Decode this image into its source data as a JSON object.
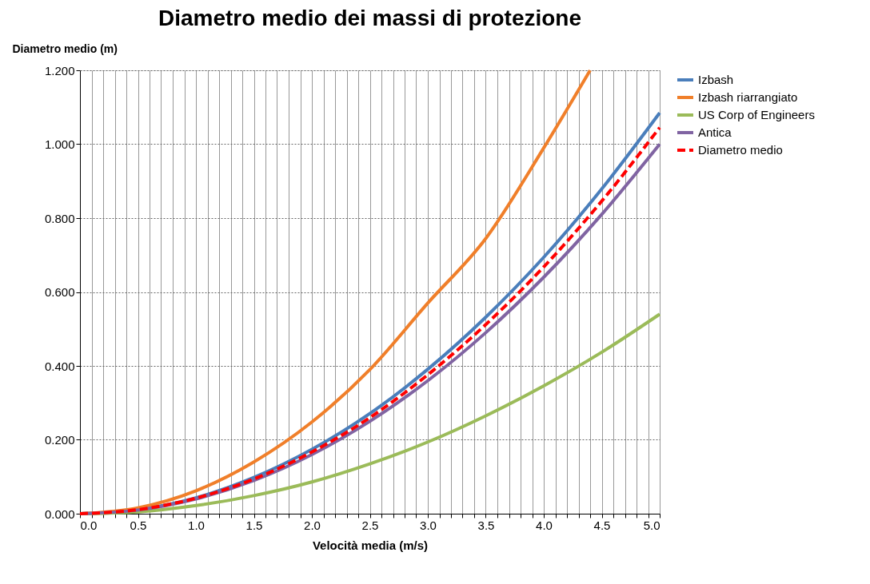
{
  "chart_data": {
    "type": "line",
    "title": "Diametro medio dei massi di protezione",
    "xlabel": "Velocità media (m/s)",
    "ylabel": "Diametro medio (m)",
    "x": [
      0,
      0.5,
      1,
      1.5,
      2,
      2.5,
      3,
      3.5,
      4,
      4.5,
      5
    ],
    "series": [
      {
        "name": "Izbash",
        "color": "#4a7ebb",
        "values": [
          0,
          0.011,
          0.043,
          0.098,
          0.174,
          0.271,
          0.391,
          0.532,
          0.694,
          0.879,
          1.085
        ]
      },
      {
        "name": "Izbash riarrangiato",
        "color": "#f07f2a",
        "x": [
          0,
          0.5,
          1,
          1.5,
          2,
          2.5,
          3,
          3.5,
          4,
          4.4
        ],
        "values": [
          0,
          0.016,
          0.062,
          0.14,
          0.248,
          0.39,
          0.57,
          0.745,
          0.99,
          1.2
        ]
      },
      {
        "name": "US Corp of Engineers",
        "color": "#9bbb59",
        "values": [
          0,
          0.005,
          0.022,
          0.049,
          0.086,
          0.135,
          0.194,
          0.265,
          0.346,
          0.437,
          0.54
        ]
      },
      {
        "name": "Antica",
        "color": "#8064a2",
        "values": [
          0,
          0.01,
          0.04,
          0.09,
          0.16,
          0.25,
          0.36,
          0.49,
          0.64,
          0.81,
          1.0
        ]
      },
      {
        "name": "Diametro medio",
        "color": "#ff0000",
        "line_style": "dashed",
        "values": [
          0,
          0.011,
          0.042,
          0.094,
          0.167,
          0.26,
          0.376,
          0.512,
          0.668,
          0.846,
          1.045
        ]
      }
    ],
    "xlim": [
      0,
      5
    ],
    "ylim": [
      0,
      1.2
    ],
    "xticks": [
      {
        "value": 0,
        "label": "0.0"
      },
      {
        "value": 0.1,
        "label": null
      },
      {
        "value": 0.2,
        "label": null
      },
      {
        "value": 0.3,
        "label": null
      },
      {
        "value": 0.4,
        "label": null
      },
      {
        "value": 0.5,
        "label": "0.5"
      },
      {
        "value": 0.6,
        "label": null
      },
      {
        "value": 0.7,
        "label": null
      },
      {
        "value": 0.8,
        "label": null
      },
      {
        "value": 0.9,
        "label": null
      },
      {
        "value": 1,
        "label": "1.0"
      },
      {
        "value": 1.1,
        "label": null
      },
      {
        "value": 1.2,
        "label": null
      },
      {
        "value": 1.3,
        "label": null
      },
      {
        "value": 1.4,
        "label": null
      },
      {
        "value": 1.5,
        "label": "1.5"
      },
      {
        "value": 1.6,
        "label": null
      },
      {
        "value": 1.7,
        "label": null
      },
      {
        "value": 1.8,
        "label": null
      },
      {
        "value": 1.9,
        "label": null
      },
      {
        "value": 2,
        "label": "2.0"
      },
      {
        "value": 2.1,
        "label": null
      },
      {
        "value": 2.2,
        "label": null
      },
      {
        "value": 2.3,
        "label": null
      },
      {
        "value": 2.4,
        "label": null
      },
      {
        "value": 2.5,
        "label": "2.5"
      },
      {
        "value": 2.6,
        "label": null
      },
      {
        "value": 2.7,
        "label": null
      },
      {
        "value": 2.8,
        "label": null
      },
      {
        "value": 2.9,
        "label": null
      },
      {
        "value": 3,
        "label": "3.0"
      },
      {
        "value": 3.1,
        "label": null
      },
      {
        "value": 3.2,
        "label": null
      },
      {
        "value": 3.3,
        "label": null
      },
      {
        "value": 3.4,
        "label": null
      },
      {
        "value": 3.5,
        "label": "3.5"
      },
      {
        "value": 3.6,
        "label": null
      },
      {
        "value": 3.7,
        "label": null
      },
      {
        "value": 3.8,
        "label": null
      },
      {
        "value": 3.9,
        "label": null
      },
      {
        "value": 4,
        "label": "4.0"
      },
      {
        "value": 4.1,
        "label": null
      },
      {
        "value": 4.2,
        "label": null
      },
      {
        "value": 4.3,
        "label": null
      },
      {
        "value": 4.4,
        "label": null
      },
      {
        "value": 4.5,
        "label": "4.5"
      },
      {
        "value": 4.6,
        "label": null
      },
      {
        "value": 4.7,
        "label": null
      },
      {
        "value": 4.8,
        "label": null
      },
      {
        "value": 4.9,
        "label": null
      },
      {
        "value": 5,
        "label": "5.0"
      }
    ],
    "yticks": [
      {
        "value": 0,
        "label": "0.000"
      },
      {
        "value": 0.2,
        "label": "0.200"
      },
      {
        "value": 0.4,
        "label": "0.400"
      },
      {
        "value": 0.6,
        "label": "0.600"
      },
      {
        "value": 0.8,
        "label": "0.800"
      },
      {
        "value": 1.0,
        "label": "1.000"
      },
      {
        "value": 1.2,
        "label": "1.200"
      }
    ],
    "grid": true,
    "legend": "right",
    "marker": "none"
  }
}
